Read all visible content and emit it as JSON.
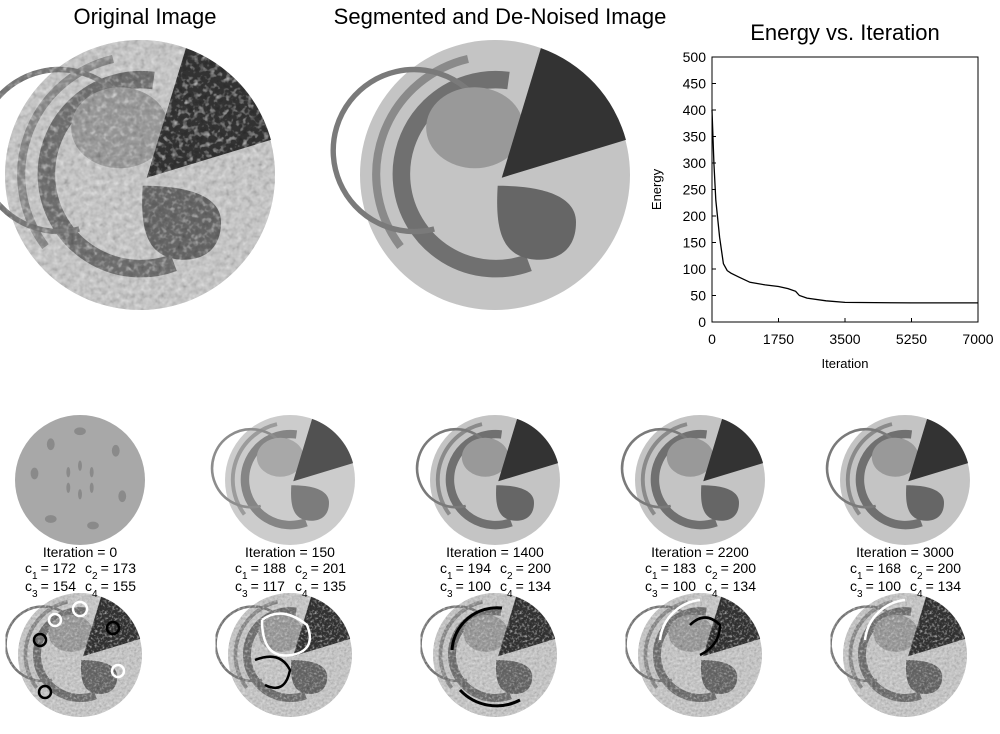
{
  "image_titles": [
    "Original Image",
    "Segmented and De-Noised Image"
  ],
  "iterations": [
    {
      "label": "Iteration = 0",
      "c": [
        {
          "symbol": "c",
          "index": "1",
          "text": "= 172"
        },
        {
          "symbol": "c",
          "index": "2",
          "text": "= 173"
        },
        {
          "symbol": "c",
          "index": "3",
          "text": "= 154"
        },
        {
          "symbol": "c",
          "index": "4",
          "text": "= 155"
        }
      ]
    },
    {
      "label": "Iteration = 150",
      "c": [
        {
          "symbol": "c",
          "index": "1",
          "text": "= 188"
        },
        {
          "symbol": "c",
          "index": "2",
          "text": "= 201"
        },
        {
          "symbol": "c",
          "index": "3",
          "text": "= 117"
        },
        {
          "symbol": "c",
          "index": "4",
          "text": "= 135"
        }
      ]
    },
    {
      "label": "Iteration = 1400",
      "c": [
        {
          "symbol": "c",
          "index": "1",
          "text": "= 194"
        },
        {
          "symbol": "c",
          "index": "2",
          "text": "= 200"
        },
        {
          "symbol": "c",
          "index": "3",
          "text": "= 100"
        },
        {
          "symbol": "c",
          "index": "4",
          "text": "= 134"
        }
      ]
    },
    {
      "label": "Iteration = 2200",
      "c": [
        {
          "symbol": "c",
          "index": "1",
          "text": "= 183"
        },
        {
          "symbol": "c",
          "index": "2",
          "text": "= 200"
        },
        {
          "symbol": "c",
          "index": "3",
          "text": "= 100"
        },
        {
          "symbol": "c",
          "index": "4",
          "text": "= 134"
        }
      ]
    },
    {
      "label": "Iteration = 3000",
      "c": [
        {
          "symbol": "c",
          "index": "1",
          "text": "= 168"
        },
        {
          "symbol": "c",
          "index": "2",
          "text": "= 200"
        },
        {
          "symbol": "c",
          "index": "3",
          "text": "= 100"
        },
        {
          "symbol": "c",
          "index": "4",
          "text": "= 134"
        }
      ]
    }
  ],
  "chart_data": {
    "type": "line",
    "title": "Energy vs. Iteration",
    "x_label": "Iteration",
    "y_label": "Energy",
    "x": [
      0,
      50,
      100,
      200,
      300,
      400,
      500,
      700,
      1000,
      1400,
      1750,
      2000,
      2200,
      2300,
      2500,
      3000,
      3500,
      5250,
      7000
    ],
    "values": [
      400,
      300,
      230,
      160,
      110,
      97,
      92,
      85,
      75,
      70,
      67,
      63,
      58,
      50,
      45,
      40,
      37,
      36,
      36
    ],
    "color": "#000000",
    "xlim": [
      0,
      7000
    ],
    "xticks": [
      0,
      1750,
      3500,
      5250,
      7000
    ],
    "ylim": [
      0,
      500
    ],
    "yticks": [
      0,
      50,
      100,
      150,
      200,
      250,
      300,
      350,
      400,
      450,
      500
    ]
  }
}
